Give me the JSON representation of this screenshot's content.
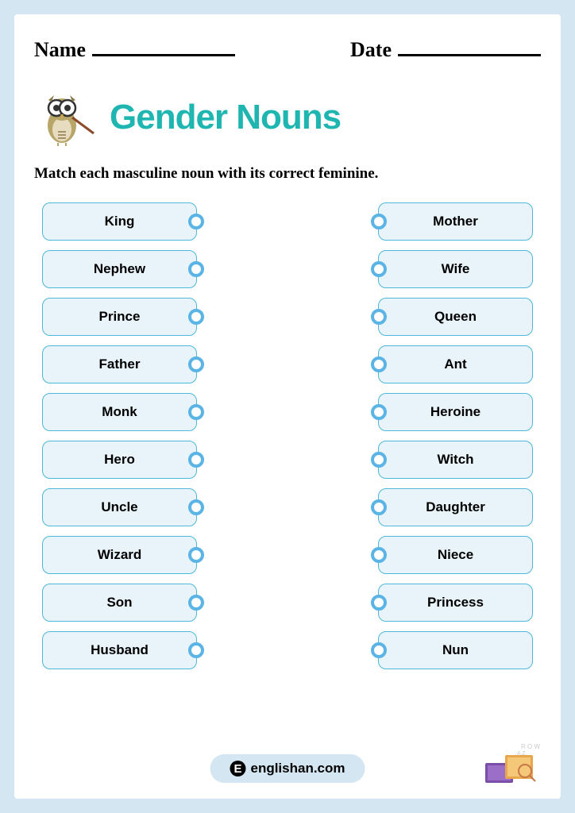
{
  "header": {
    "name_label": "Name",
    "date_label": "Date"
  },
  "title": "Gender Nouns",
  "title_color": "#1fb5b0",
  "instruction": "Match each masculine noun with its correct feminine.",
  "box_style": {
    "background": "#e8f4fa",
    "border_color": "#4db8d9"
  },
  "connector_style": {
    "border_color": "#5ab4e6"
  },
  "left_words": [
    "King",
    "Nephew",
    "Prince",
    "Father",
    "Monk",
    "Hero",
    "Uncle",
    "Wizard",
    "Son",
    "Husband"
  ],
  "right_words": [
    "Mother",
    "Wife",
    "Queen",
    "Ant",
    "Heroine",
    "Witch",
    "Daughter",
    "Niece",
    "Princess",
    "Nun"
  ],
  "footer": {
    "text": "englishan.com",
    "background": "#d4e6f1"
  }
}
